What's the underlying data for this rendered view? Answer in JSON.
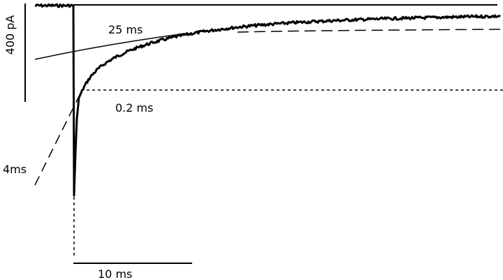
{
  "labels": {
    "amplitude_scale": "400 pA",
    "slow_tau": "25 ms",
    "fast_tau": "0.2 ms",
    "intermediate_tau": "4ms",
    "time_scale": "10 ms"
  }
}
